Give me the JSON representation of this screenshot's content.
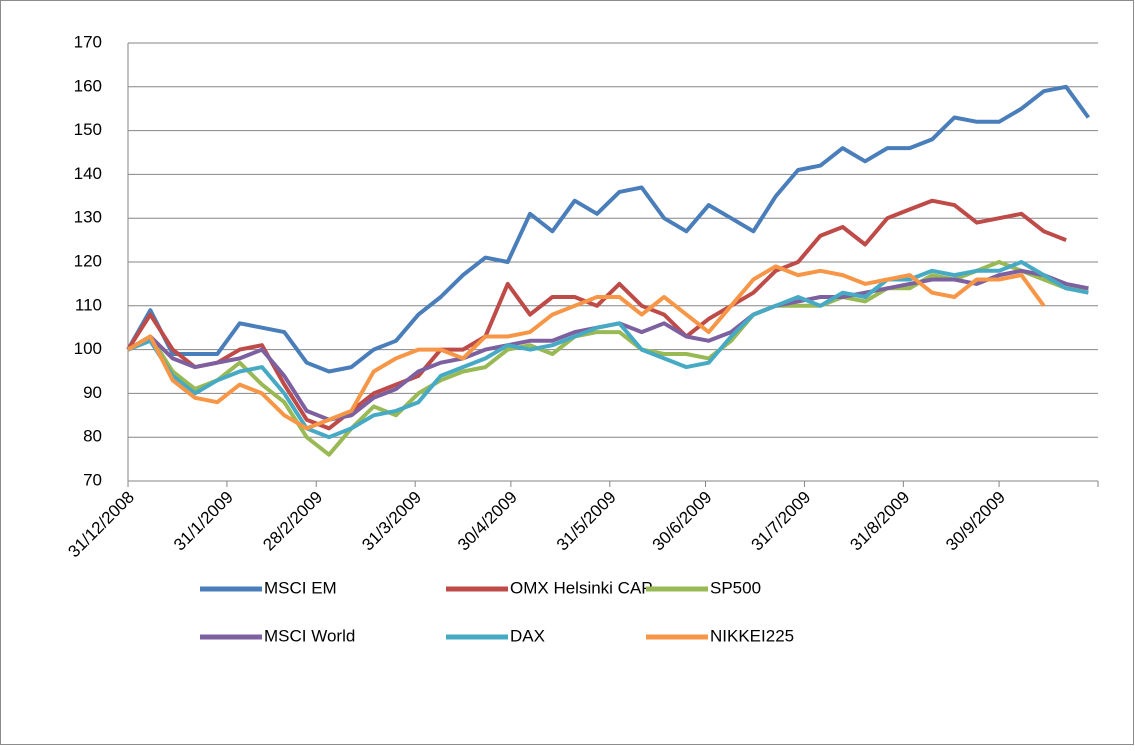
{
  "chart_data": {
    "type": "line",
    "x": [
      "31/12/2008",
      "7/1/2009",
      "14/1/2009",
      "21/1/2009",
      "28/1/2009",
      "4/2/2009",
      "11/2/2009",
      "18/2/2009",
      "25/2/2009",
      "4/3/2009",
      "11/3/2009",
      "18/3/2009",
      "25/3/2009",
      "1/4/2009",
      "8/4/2009",
      "15/4/2009",
      "22/4/2009",
      "29/4/2009",
      "6/5/2009",
      "13/5/2009",
      "20/5/2009",
      "27/5/2009",
      "3/6/2009",
      "10/6/2009",
      "17/6/2009",
      "24/6/2009",
      "1/7/2009",
      "8/7/2009",
      "15/7/2009",
      "22/7/2009",
      "29/7/2009",
      "5/8/2009",
      "12/8/2009",
      "19/8/2009",
      "26/8/2009",
      "2/9/2009",
      "9/9/2009",
      "16/9/2009",
      "23/9/2009",
      "30/9/2009",
      "7/10/2009",
      "14/10/2009",
      "21/10/2009",
      "28/10/2009"
    ],
    "series": [
      {
        "name": "MSCI EM",
        "color": "#4a7ebb",
        "values": [
          100,
          109,
          99,
          99,
          99,
          106,
          105,
          104,
          97,
          95,
          96,
          100,
          102,
          108,
          112,
          117,
          121,
          120,
          131,
          127,
          134,
          131,
          136,
          137,
          130,
          127,
          133,
          130,
          127,
          135,
          141,
          142,
          146,
          143,
          146,
          146,
          148,
          153,
          152,
          152,
          155,
          159,
          160,
          153
        ]
      },
      {
        "name": "OMX Helsinki CAP",
        "color": "#be4b48",
        "values": [
          100,
          108,
          100,
          96,
          97,
          100,
          101,
          92,
          84,
          82,
          86,
          90,
          92,
          94,
          100,
          100,
          103,
          115,
          108,
          112,
          112,
          110,
          115,
          110,
          108,
          103,
          107,
          110,
          113,
          118,
          120,
          126,
          128,
          124,
          130,
          132,
          134,
          133,
          129,
          130,
          131,
          127,
          125,
          null
        ]
      },
      {
        "name": "SP500",
        "color": "#98b954",
        "values": [
          100,
          103,
          95,
          91,
          93,
          97,
          92,
          88,
          80,
          76,
          82,
          87,
          85,
          90,
          93,
          95,
          96,
          100,
          101,
          99,
          103,
          104,
          104,
          100,
          99,
          99,
          98,
          102,
          108,
          110,
          110,
          110,
          112,
          111,
          114,
          114,
          117,
          116,
          118,
          120,
          118,
          116,
          114,
          114
        ]
      },
      {
        "name": "MSCI World",
        "color": "#7d60a0",
        "values": [
          100,
          103,
          98,
          96,
          97,
          98,
          100,
          94,
          86,
          84,
          85,
          89,
          91,
          95,
          97,
          98,
          100,
          101,
          102,
          102,
          104,
          105,
          106,
          104,
          106,
          103,
          102,
          104,
          108,
          110,
          111,
          112,
          112,
          113,
          114,
          115,
          116,
          116,
          115,
          117,
          118,
          117,
          115,
          114
        ]
      },
      {
        "name": "DAX",
        "color": "#46aac5",
        "values": [
          100,
          102,
          94,
          90,
          93,
          95,
          96,
          90,
          82,
          80,
          82,
          85,
          86,
          88,
          94,
          96,
          98,
          101,
          100,
          101,
          103,
          105,
          106,
          100,
          98,
          96,
          97,
          103,
          108,
          110,
          112,
          110,
          113,
          112,
          116,
          116,
          118,
          117,
          118,
          118,
          120,
          117,
          114,
          113
        ]
      },
      {
        "name": "NIKKEI225",
        "color": "#f79646",
        "values": [
          100,
          103,
          93,
          89,
          88,
          92,
          90,
          85,
          82,
          84,
          86,
          95,
          98,
          100,
          100,
          98,
          103,
          103,
          104,
          108,
          110,
          112,
          112,
          108,
          112,
          108,
          104,
          110,
          116,
          119,
          117,
          118,
          117,
          115,
          116,
          117,
          113,
          112,
          116,
          116,
          117,
          110,
          null,
          null
        ]
      }
    ],
    "xlim": [
      "31/12/2008",
      "31/10/2009"
    ],
    "xticks": [
      "31/12/2008",
      "31/1/2009",
      "28/2/2009",
      "31/3/2009",
      "30/4/2009",
      "31/5/2009",
      "30/6/2009",
      "31/7/2009",
      "31/8/2009",
      "30/9/2009"
    ],
    "ylim": [
      70,
      170
    ],
    "yticks": [
      70,
      80,
      90,
      100,
      110,
      120,
      130,
      140,
      150,
      160,
      170
    ],
    "grid": true
  }
}
